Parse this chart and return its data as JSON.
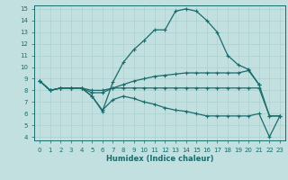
{
  "xlabel": "Humidex (Indice chaleur)",
  "ylabel": "",
  "bg_color": "#c2e0e0",
  "line_color": "#1a6b6b",
  "grid_color": "#aacfcf",
  "xlim": [
    -0.5,
    23.5
  ],
  "ylim": [
    3.7,
    15.3
  ],
  "yticks": [
    4,
    5,
    6,
    7,
    8,
    9,
    10,
    11,
    12,
    13,
    14,
    15
  ],
  "xticks": [
    0,
    1,
    2,
    3,
    4,
    5,
    6,
    7,
    8,
    9,
    10,
    11,
    12,
    13,
    14,
    15,
    16,
    17,
    18,
    19,
    20,
    21,
    22,
    23
  ],
  "lines": [
    {
      "x": [
        0,
        1,
        2,
        3,
        4,
        5,
        6,
        7,
        8,
        9,
        10,
        11,
        12,
        13,
        14,
        15,
        16,
        17,
        18,
        19,
        20,
        21
      ],
      "y": [
        8.8,
        8.0,
        8.2,
        8.2,
        8.2,
        7.5,
        6.2,
        8.7,
        10.4,
        11.5,
        12.3,
        13.2,
        13.2,
        14.8,
        15.0,
        14.8,
        14.0,
        13.0,
        11.0,
        10.2,
        9.8,
        8.5
      ]
    },
    {
      "x": [
        0,
        1,
        2,
        3,
        4,
        5,
        6,
        7,
        8,
        9,
        10,
        11,
        12,
        13,
        14,
        15,
        16,
        17,
        18,
        19,
        20,
        21,
        22,
        23
      ],
      "y": [
        8.8,
        8.0,
        8.2,
        8.2,
        8.2,
        7.8,
        7.8,
        8.2,
        8.5,
        8.8,
        9.0,
        9.2,
        9.3,
        9.4,
        9.5,
        9.5,
        9.5,
        9.5,
        9.5,
        9.5,
        9.7,
        8.5,
        5.8,
        5.8
      ]
    },
    {
      "x": [
        0,
        1,
        2,
        3,
        4,
        5,
        6,
        7,
        8,
        9,
        10,
        11,
        12,
        13,
        14,
        15,
        16,
        17,
        18,
        19,
        20,
        21,
        22,
        23
      ],
      "y": [
        8.8,
        8.0,
        8.2,
        8.2,
        8.2,
        8.0,
        8.0,
        8.2,
        8.2,
        8.2,
        8.2,
        8.2,
        8.2,
        8.2,
        8.2,
        8.2,
        8.2,
        8.2,
        8.2,
        8.2,
        8.2,
        8.2,
        5.8,
        5.8
      ]
    },
    {
      "x": [
        0,
        1,
        2,
        3,
        4,
        5,
        6,
        7,
        8,
        9,
        10,
        11,
        12,
        13,
        14,
        15,
        16,
        17,
        18,
        19,
        20,
        21,
        22,
        23
      ],
      "y": [
        8.8,
        8.0,
        8.2,
        8.2,
        8.2,
        7.5,
        6.3,
        7.2,
        7.5,
        7.3,
        7.0,
        6.8,
        6.5,
        6.3,
        6.2,
        6.0,
        5.8,
        5.8,
        5.8,
        5.8,
        5.8,
        6.0,
        4.0,
        5.8
      ]
    }
  ]
}
